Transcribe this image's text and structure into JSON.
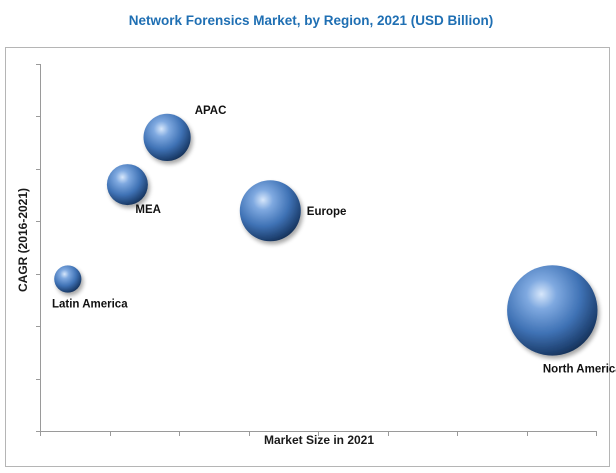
{
  "chart_data": {
    "type": "bubble",
    "title": "Network Forensics Market, by Region, 2021 (USD Billion)",
    "xlabel": "Market Size in 2021",
    "ylabel": "CAGR (2016-2021)",
    "grid": false,
    "axis_ticks_labeled": false,
    "bubble_color": "#3f72b5",
    "title_color": "#1f6fb3",
    "series": [
      {
        "name": "APAC",
        "x": 3.2,
        "y": 5.6,
        "size": 0.6
      },
      {
        "name": "MEA",
        "x": 2.2,
        "y": 4.7,
        "size": 0.45
      },
      {
        "name": "Europe",
        "x": 5.8,
        "y": 4.2,
        "size": 1.0
      },
      {
        "name": "Latin America",
        "x": 0.7,
        "y": 2.9,
        "size": 0.2
      },
      {
        "name": "North America",
        "x": 12.9,
        "y": 2.3,
        "size": 2.2
      }
    ]
  }
}
